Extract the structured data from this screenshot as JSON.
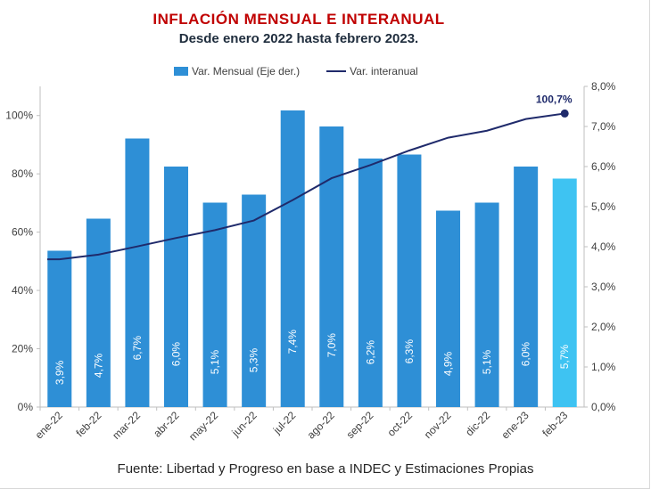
{
  "title": "INFLACIÓN  MENSUAL E INTERANUAL",
  "subtitle": "Desde enero 2022 hasta febrero  2023.",
  "source": "Fuente:  Libertad y Progreso en base a INDEC y Estimaciones Propias",
  "legend": {
    "bar_label": "Var. Mensual (Eje der.)",
    "line_label": "Var. interanual"
  },
  "colors": {
    "bar": "#2e8fd6",
    "bar_highlight": "#3ec3f2",
    "line": "#1f2a6b",
    "axis": "#bfbfbf",
    "text": "#404040"
  },
  "chart_data": {
    "type": "bar",
    "categories": [
      "ene-22",
      "feb-22",
      "mar-22",
      "abr-22",
      "may-22",
      "jun-22",
      "jul-22",
      "ago-22",
      "sep-22",
      "oct-22",
      "nov-22",
      "dic-22",
      "ene-23",
      "feb-23"
    ],
    "series": [
      {
        "name": "Var. Mensual (Eje der.)",
        "axis": "right",
        "type": "bar",
        "values": [
          3.9,
          4.7,
          6.7,
          6.0,
          5.1,
          5.3,
          7.4,
          7.0,
          6.2,
          6.3,
          4.9,
          5.1,
          6.0,
          5.7
        ],
        "labels": [
          "3,9%",
          "4,7%",
          "6,7%",
          "6,0%",
          "5,1%",
          "5,3%",
          "7,4%",
          "7,0%",
          "6,2%",
          "6,3%",
          "4,9%",
          "5,1%",
          "6,0%",
          "5,7%"
        ]
      },
      {
        "name": "Var. interanual",
        "axis": "left",
        "type": "line",
        "values": [
          50.7,
          52.3,
          55.1,
          58.0,
          60.7,
          64.0,
          71.0,
          78.5,
          83.0,
          88.0,
          92.4,
          94.8,
          98.8,
          100.7
        ],
        "end_label": "100,7%"
      }
    ],
    "left_axis": {
      "ylim": [
        0,
        110
      ],
      "ticks": [
        0,
        20,
        40,
        60,
        80,
        100
      ],
      "tick_labels": [
        "0%",
        "20%",
        "40%",
        "60%",
        "80%",
        "100%"
      ]
    },
    "right_axis": {
      "ylim": [
        0,
        8
      ],
      "ticks": [
        0,
        1,
        2,
        3,
        4,
        5,
        6,
        7,
        8
      ],
      "tick_labels": [
        "0,0%",
        "1,0%",
        "2,0%",
        "3,0%",
        "4,0%",
        "5,0%",
        "6,0%",
        "7,0%",
        "8,0%"
      ]
    },
    "highlight_index": 13,
    "grid": false,
    "legend_position": "top"
  }
}
